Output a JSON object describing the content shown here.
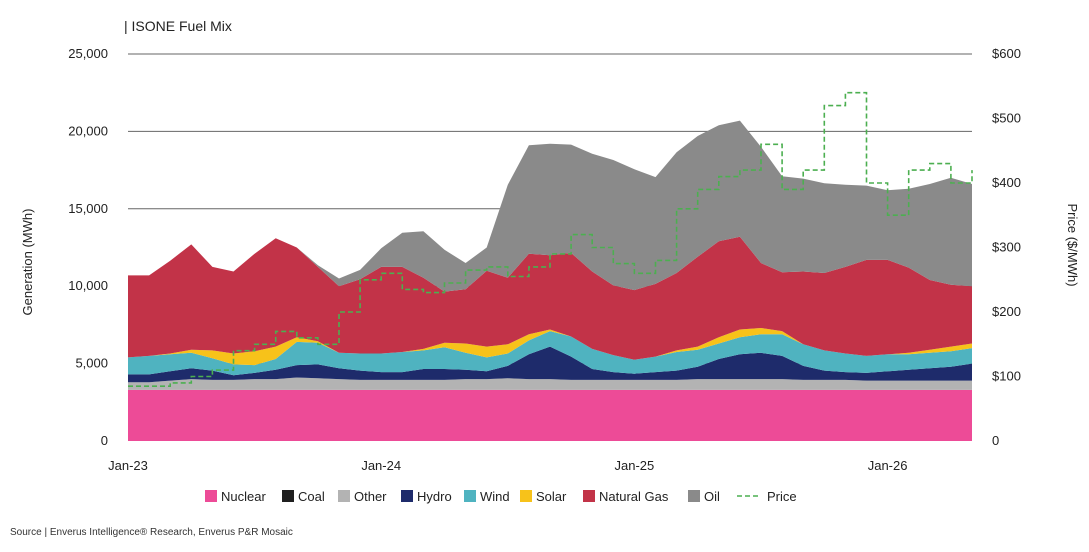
{
  "chart_data": {
    "type": "area",
    "title": "| ISONE Fuel Mix",
    "ylabel": "Generation (MWh)",
    "y2label": "Price ($/MWh)",
    "ylim": [
      0,
      25000
    ],
    "y2lim": [
      0,
      600
    ],
    "yticks": [
      "0",
      "5,000",
      "10,000",
      "15,000",
      "20,000",
      "25,000"
    ],
    "y2ticks": [
      "0",
      "$100",
      "$200",
      "$300",
      "$400",
      "$500",
      "$600"
    ],
    "xticks": [
      "Jan-23",
      "Jan-24",
      "Jan-25",
      "Jan-26"
    ],
    "x_start_month": "Jan-23",
    "x_end_month": "May-26",
    "grid": "horizontal",
    "legend_position": "bottom",
    "colors": {
      "Nuclear": "#ED4B97",
      "Coal": "#1f1f1f",
      "Other": "#b3b3b3",
      "Hydro": "#1e2b6b",
      "Wind": "#4fb3c0",
      "Solar": "#f7c21a",
      "Natural Gas": "#c23348",
      "Oil": "#8a8a8a",
      "Price": "#4caf50"
    },
    "series": [
      {
        "name": "Nuclear",
        "values": [
          3300,
          3300,
          3300,
          3300,
          3300,
          3300,
          3300,
          3300,
          3300,
          3300,
          3300,
          3300,
          3300,
          3300,
          3300,
          3300,
          3300,
          3300,
          3300,
          3300,
          3300,
          3300,
          3300,
          3300,
          3300,
          3300,
          3300,
          3300,
          3300,
          3300,
          3300,
          3300,
          3300,
          3300,
          3300,
          3300,
          3300,
          3300,
          3300,
          3300,
          3300
        ]
      },
      {
        "name": "Coal",
        "values": [
          0,
          0,
          0,
          0,
          0,
          0,
          0,
          0,
          0,
          0,
          0,
          0,
          0,
          0,
          0,
          0,
          0,
          0,
          0,
          0,
          0,
          0,
          0,
          0,
          0,
          0,
          0,
          0,
          0,
          0,
          0,
          0,
          0,
          0,
          0,
          0,
          0,
          0,
          0,
          0,
          0
        ]
      },
      {
        "name": "Other",
        "values": [
          500,
          500,
          600,
          700,
          650,
          650,
          700,
          700,
          800,
          750,
          700,
          650,
          650,
          650,
          650,
          650,
          700,
          700,
          750,
          700,
          700,
          650,
          650,
          650,
          650,
          650,
          650,
          700,
          700,
          700,
          700,
          700,
          650,
          650,
          650,
          600,
          600,
          600,
          600,
          600,
          600
        ]
      },
      {
        "name": "Hydro",
        "values": [
          500,
          500,
          600,
          700,
          600,
          300,
          400,
          600,
          800,
          900,
          700,
          600,
          500,
          500,
          700,
          700,
          600,
          500,
          800,
          1600,
          2100,
          1500,
          700,
          500,
          400,
          500,
          600,
          800,
          1300,
          1600,
          1700,
          1500,
          900,
          600,
          500,
          500,
          600,
          700,
          800,
          900,
          1100
        ]
      },
      {
        "name": "Wind",
        "values": [
          1100,
          1200,
          1100,
          1000,
          800,
          700,
          500,
          700,
          1500,
          1400,
          1000,
          1100,
          1200,
          1300,
          1200,
          1400,
          1100,
          900,
          800,
          900,
          1000,
          1300,
          1300,
          1100,
          900,
          1000,
          1200,
          1100,
          1000,
          1100,
          1200,
          1400,
          1400,
          1300,
          1200,
          1100,
          1100,
          1000,
          1000,
          1000,
          1000
        ]
      },
      {
        "name": "Solar",
        "values": [
          0,
          0,
          50,
          200,
          500,
          700,
          900,
          800,
          300,
          100,
          0,
          0,
          0,
          0,
          100,
          300,
          600,
          700,
          600,
          400,
          100,
          0,
          0,
          0,
          0,
          0,
          100,
          200,
          400,
          500,
          400,
          200,
          0,
          0,
          0,
          0,
          0,
          100,
          200,
          300,
          300
        ]
      },
      {
        "name": "Natural Gas",
        "values": [
          5300,
          5200,
          6000,
          6800,
          5400,
          5300,
          6300,
          7000,
          5800,
          4800,
          4300,
          4800,
          5600,
          5500,
          4600,
          3300,
          3500,
          4900,
          4300,
          5200,
          4800,
          5400,
          5000,
          4500,
          4500,
          4700,
          5000,
          5800,
          6200,
          6000,
          4200,
          3800,
          4700,
          5000,
          5600,
          6200,
          6100,
          5500,
          4500,
          4000,
          3700
        ]
      },
      {
        "name": "Oil",
        "values": [
          0,
          0,
          0,
          0,
          0,
          0,
          0,
          0,
          0,
          100,
          500,
          600,
          1200,
          2200,
          3000,
          2700,
          1700,
          1500,
          6000,
          7000,
          7200,
          7000,
          7600,
          8100,
          7800,
          6900,
          7800,
          7800,
          7500,
          7500,
          7500,
          6200,
          6000,
          5800,
          5300,
          4800,
          4500,
          5100,
          6200,
          6900,
          6600
        ]
      },
      {
        "name": "Price",
        "values": [
          85,
          85,
          90,
          100,
          110,
          140,
          150,
          170,
          160,
          150,
          200,
          250,
          260,
          235,
          230,
          245,
          265,
          270,
          255,
          270,
          290,
          320,
          300,
          275,
          260,
          280,
          360,
          390,
          410,
          420,
          460,
          390,
          420,
          520,
          540,
          400,
          350,
          420,
          430,
          400,
          420
        ]
      }
    ]
  },
  "legend": [
    "Nuclear",
    "Coal",
    "Other",
    "Hydro",
    "Wind",
    "Solar",
    "Natural Gas",
    "Oil",
    "Price"
  ],
  "source": "Source | Enverus Intelligence® Research, Enverus P&R Mosaic"
}
